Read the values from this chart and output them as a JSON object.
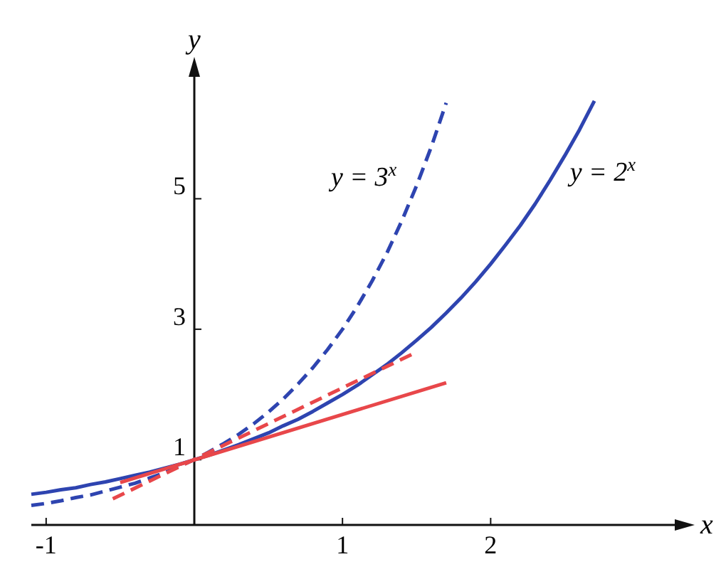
{
  "chart_data": {
    "type": "line",
    "xlabel": "x",
    "ylabel": "y",
    "xlim": [
      -1.1,
      3.3
    ],
    "ylim": [
      0,
      7
    ],
    "xticks": [
      -1,
      1,
      2
    ],
    "yticks": [
      1,
      3,
      5
    ],
    "grid": false,
    "series": [
      {
        "name": "y = 2$^{x}$",
        "color": "#2e44b0",
        "line_style": "solid",
        "x": [
          -1.1,
          -1.0,
          -0.9,
          -0.8,
          -0.7,
          -0.6,
          -0.5,
          -0.4,
          -0.3,
          -0.2,
          -0.1,
          0,
          0.1,
          0.2,
          0.3,
          0.4,
          0.5,
          0.6,
          0.7,
          0.8,
          0.9,
          1.0,
          1.1,
          1.2,
          1.3,
          1.4,
          1.5,
          1.6,
          1.7,
          1.8,
          1.9,
          2.0,
          2.1,
          2.2,
          2.3,
          2.4,
          2.5,
          2.6,
          2.7
        ],
        "values": [
          0.47,
          0.5,
          0.54,
          0.57,
          0.62,
          0.66,
          0.71,
          0.76,
          0.81,
          0.87,
          0.93,
          1,
          1.07,
          1.15,
          1.23,
          1.32,
          1.41,
          1.52,
          1.62,
          1.74,
          1.87,
          2,
          2.14,
          2.3,
          2.46,
          2.64,
          2.83,
          3.03,
          3.25,
          3.48,
          3.73,
          4,
          4.29,
          4.59,
          4.92,
          5.28,
          5.66,
          6.06,
          6.5
        ]
      },
      {
        "name": "y = 3$^{x}$",
        "color": "#2e44b0",
        "line_style": "dashed",
        "x": [
          -1.1,
          -1.0,
          -0.9,
          -0.8,
          -0.7,
          -0.6,
          -0.5,
          -0.4,
          -0.3,
          -0.2,
          -0.1,
          0,
          0.1,
          0.2,
          0.3,
          0.4,
          0.5,
          0.6,
          0.7,
          0.8,
          0.9,
          1.0,
          1.1,
          1.2,
          1.3,
          1.4,
          1.5,
          1.6,
          1.7
        ],
        "values": [
          0.3,
          0.33,
          0.37,
          0.42,
          0.46,
          0.52,
          0.58,
          0.64,
          0.72,
          0.8,
          0.9,
          1,
          1.12,
          1.25,
          1.39,
          1.55,
          1.73,
          1.93,
          2.16,
          2.41,
          2.69,
          3,
          3.35,
          3.74,
          4.17,
          4.66,
          5.2,
          5.8,
          6.47
        ]
      },
      {
        "color": "#e8474a",
        "line_style": "solid",
        "x": [
          -0.5,
          1.7
        ],
        "values": [
          0.65,
          2.18
        ]
      },
      {
        "color": "#e8474a",
        "line_style": "dashed",
        "x": [
          -0.55,
          1.5
        ],
        "values": [
          0.4,
          2.65
        ]
      }
    ]
  }
}
